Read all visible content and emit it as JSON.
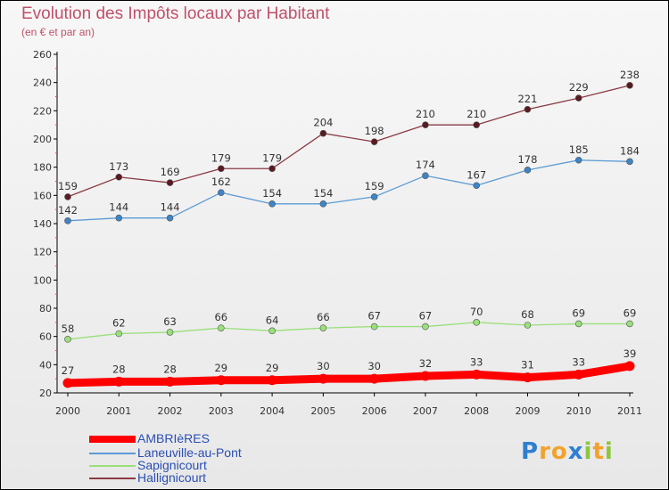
{
  "chart_data": {
    "type": "line",
    "title": "Evolution des Impôts locaux par Habitant",
    "subtitle": "(en € et par an)",
    "xlabel": "",
    "ylabel": "",
    "x": [
      "2000",
      "2001",
      "2002",
      "2003",
      "2004",
      "2005",
      "2006",
      "2007",
      "2008",
      "2009",
      "2010",
      "2011"
    ],
    "ylim": [
      20,
      260
    ],
    "yticks": [
      20,
      40,
      60,
      80,
      100,
      120,
      140,
      160,
      180,
      200,
      220,
      240,
      260
    ],
    "grid": false,
    "legend_position": "bottom-left",
    "series": [
      {
        "name": "AMBRIèRES",
        "values": [
          27,
          28,
          28,
          29,
          29,
          30,
          30,
          32,
          33,
          31,
          33,
          39
        ],
        "color": "#ff0000"
      },
      {
        "name": "Laneuville-au-Pont",
        "values": [
          142,
          144,
          144,
          162,
          154,
          154,
          159,
          174,
          167,
          178,
          185,
          184
        ],
        "color": "#5b9bd5"
      },
      {
        "name": "Sapignicourt",
        "values": [
          58,
          62,
          63,
          66,
          64,
          66,
          67,
          67,
          70,
          68,
          69,
          69
        ],
        "color": "#99e07a"
      },
      {
        "name": "Hallignicourt",
        "values": [
          159,
          173,
          169,
          179,
          179,
          204,
          198,
          210,
          210,
          221,
          229,
          238
        ],
        "color": "#8b3a44"
      }
    ]
  },
  "logo": {
    "letters": [
      "P",
      "r",
      "o",
      "x",
      "i",
      "t",
      "i"
    ],
    "colors": [
      "#2f7fd0",
      "#f2a22c",
      "#f2a22c",
      "#2f7fd0",
      "#8cc63f",
      "#f2a22c",
      "#8cc63f"
    ]
  }
}
